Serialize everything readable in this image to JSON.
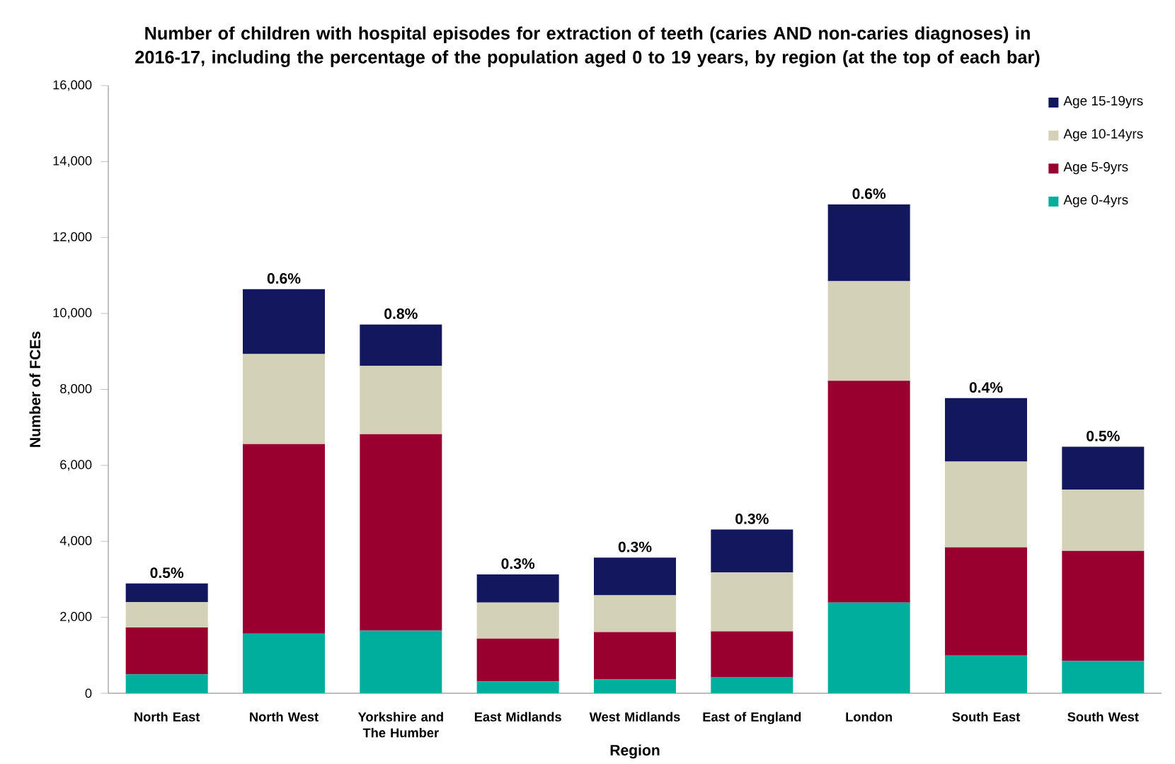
{
  "chart_data": {
    "type": "bar",
    "stacked": true,
    "title": "Number of children with hospital episodes for extraction of teeth (caries AND non-caries diagnoses) in 2016-17, including the percentage of the population aged 0 to 19 years, by region (at the top of each bar)",
    "xlabel": "Region",
    "ylabel": "Number of FCEs",
    "categories": [
      "North East",
      "North West",
      "Yorkshire and The Humber",
      "East Midlands",
      "West Midlands",
      "East of England",
      "London",
      "South East",
      "South West"
    ],
    "series": [
      {
        "name": "Age 0-4yrs",
        "color": "#00ae9e",
        "values": [
          500,
          1570,
          1650,
          310,
          370,
          430,
          2390,
          990,
          850
        ]
      },
      {
        "name": "Age 5-9yrs",
        "color": "#990030",
        "values": [
          1230,
          4990,
          5170,
          1130,
          1240,
          1200,
          5840,
          2850,
          2900
        ]
      },
      {
        "name": "Age 10-14yrs",
        "color": "#d3d1b7",
        "values": [
          670,
          2370,
          1800,
          950,
          970,
          1550,
          2620,
          2260,
          1610
        ]
      },
      {
        "name": "Age 15-19yrs",
        "color": "#12175e",
        "values": [
          490,
          1710,
          1090,
          740,
          990,
          1130,
          2020,
          1670,
          1130
        ]
      }
    ],
    "annotations": [
      {
        "text": "0.5%",
        "x": "North East",
        "y": 2890
      },
      {
        "text": "0.6%",
        "x": "North West",
        "y": 10640
      },
      {
        "text": "0.8%",
        "x": "Yorkshire and The Humber",
        "y": 9710
      },
      {
        "text": "0.3%",
        "x": "East Midlands",
        "y": 3130
      },
      {
        "text": "0.3%",
        "x": "West Midlands",
        "y": 3570
      },
      {
        "text": "0.3%",
        "x": "East of England",
        "y": 4310
      },
      {
        "text": "0.6%",
        "x": "London",
        "y": 12870
      },
      {
        "text": "0.4%",
        "x": "South East",
        "y": 7770
      },
      {
        "text": "0.5%",
        "x": "South West",
        "y": 6490
      }
    ],
    "ylim": [
      0,
      16000
    ],
    "yticks": [
      {
        "value": 0,
        "label": "0"
      },
      {
        "value": 2000,
        "label": "2,000"
      },
      {
        "value": 4000,
        "label": "4,000"
      },
      {
        "value": 6000,
        "label": "6,000"
      },
      {
        "value": 8000,
        "label": "8,000"
      },
      {
        "value": 10000,
        "label": "10,000"
      },
      {
        "value": 12000,
        "label": "12,000"
      },
      {
        "value": 14000,
        "label": "14,000"
      },
      {
        "value": 16000,
        "label": "16,000"
      }
    ],
    "legend": "top right",
    "grid": false
  }
}
